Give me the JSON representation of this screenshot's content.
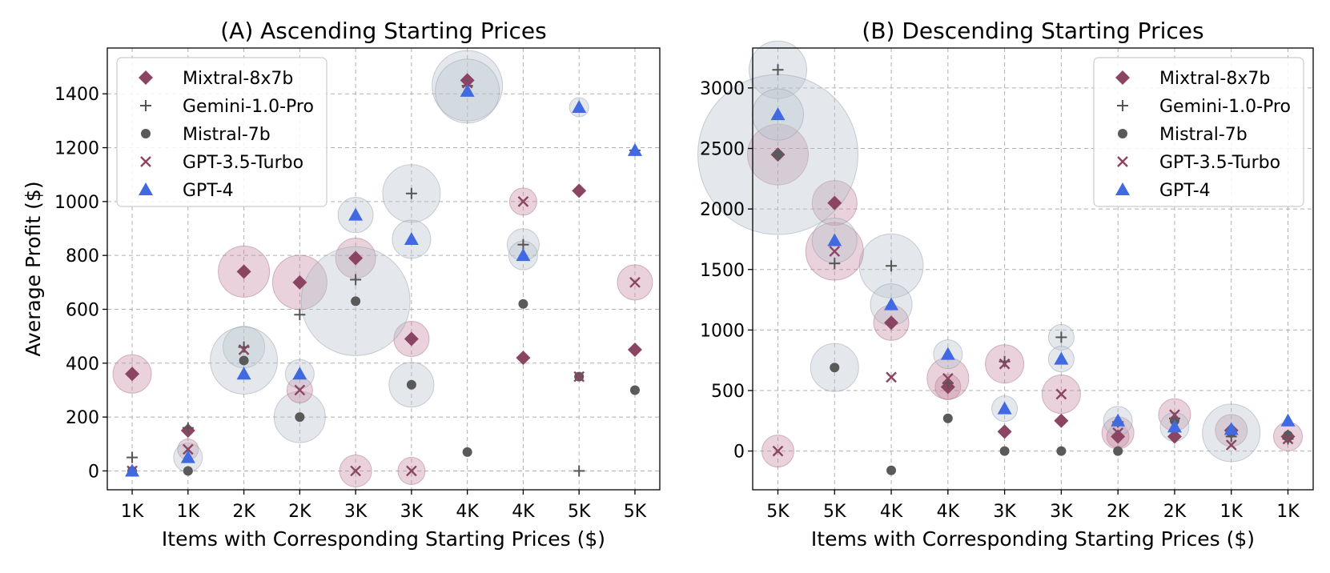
{
  "figure": {
    "colors": {
      "Mixtral-8x7b": "#8b4563",
      "Gemini-1.0-Pro": "#555555",
      "Mistral-7b": "#5a5a5a",
      "GPT-3.5-Turbo": "#8b4563",
      "GPT-4": "#4169e1",
      "bubble_red": "#c58aa0",
      "bubble_gray": "#b8c2cc"
    }
  },
  "chart_data": [
    {
      "type": "scatter",
      "title": "(A) Ascending Starting Prices",
      "xlabel": "Items with Corresponding Starting Prices ($)",
      "ylabel": "Average Profit ($)",
      "categories": [
        "1K",
        "1K",
        "2K",
        "2K",
        "3K",
        "3K",
        "4K",
        "4K",
        "5K",
        "5K"
      ],
      "ylim": [
        -70,
        1570
      ],
      "yticks": [
        0,
        200,
        400,
        600,
        800,
        1000,
        1200,
        1400
      ],
      "grid": true,
      "legend_position": "top-left",
      "series": [
        {
          "name": "Mixtral-8x7b",
          "marker": "diamond",
          "values": [
            360,
            150,
            740,
            700,
            790,
            490,
            1450,
            420,
            1040,
            450
          ]
        },
        {
          "name": "Gemini-1.0-Pro",
          "marker": "plus",
          "values": [
            50,
            160,
            460,
            580,
            710,
            1030,
            1430,
            840,
            0,
            1190
          ]
        },
        {
          "name": "Mistral-7b",
          "marker": "circle",
          "values": [
            0,
            0,
            410,
            200,
            630,
            320,
            70,
            620,
            350,
            300
          ]
        },
        {
          "name": "GPT-3.5-Turbo",
          "marker": "x",
          "values": [
            0,
            80,
            450,
            300,
            0,
            0,
            1440,
            1000,
            350,
            700
          ]
        },
        {
          "name": "GPT-4",
          "marker": "triangle",
          "values": [
            0,
            50,
            360,
            360,
            950,
            860,
            1410,
            800,
            1350,
            1190
          ]
        }
      ]
    },
    {
      "type": "scatter",
      "title": "(B) Descending Starting Prices",
      "xlabel": "Items with Corresponding Starting Prices ($)",
      "ylabel": "",
      "categories": [
        "5K",
        "5K",
        "4K",
        "4K",
        "3K",
        "3K",
        "2K",
        "2K",
        "1K",
        "1K"
      ],
      "ylim": [
        -320,
        3330
      ],
      "yticks": [
        0,
        500,
        1000,
        1500,
        2000,
        2500,
        3000
      ],
      "grid": true,
      "legend_position": "top-right",
      "series": [
        {
          "name": "Mixtral-8x7b",
          "marker": "diamond",
          "values": [
            2450,
            2050,
            1060,
            530,
            160,
            250,
            120,
            120,
            170,
            120
          ]
        },
        {
          "name": "Gemini-1.0-Pro",
          "marker": "plus",
          "values": [
            3150,
            1550,
            1530,
            560,
            740,
            940,
            240,
            270,
            120,
            100
          ]
        },
        {
          "name": "Mistral-7b",
          "marker": "circle",
          "values": [
            2450,
            690,
            -160,
            270,
            0,
            0,
            0,
            250,
            150,
            130
          ]
        },
        {
          "name": "GPT-3.5-Turbo",
          "marker": "x",
          "values": [
            0,
            1650,
            610,
            600,
            720,
            470,
            150,
            300,
            50,
            100
          ]
        },
        {
          "name": "GPT-4",
          "marker": "triangle",
          "values": [
            2780,
            1740,
            1210,
            800,
            350,
            760,
            250,
            200,
            180,
            250
          ]
        }
      ]
    }
  ]
}
